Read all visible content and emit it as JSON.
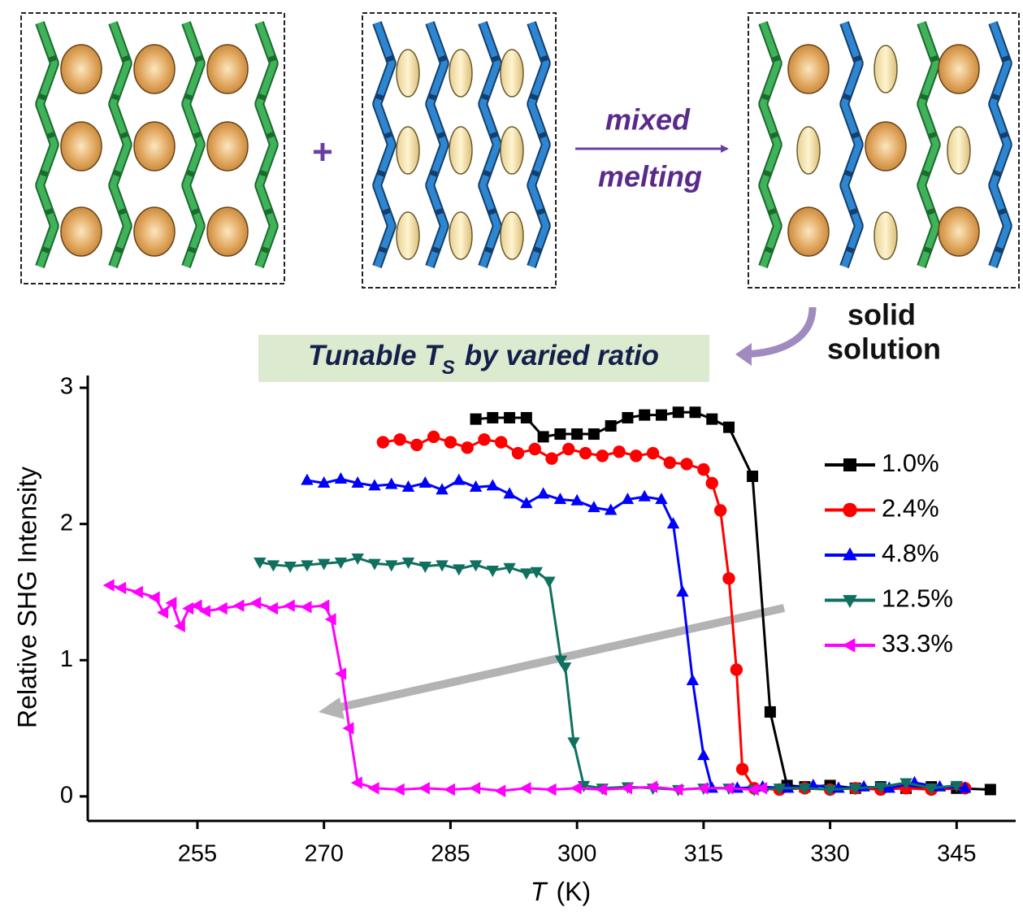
{
  "diagram": {
    "plus": "+",
    "arrow_label_top": "mixed",
    "arrow_label_bottom": "melting",
    "product_label_top": "solid",
    "product_label_bottom": "solution",
    "banner": {
      "before": "Tunable T",
      "subscript": "S",
      "after": "by varied ratio"
    }
  },
  "chart_data": {
    "type": "line",
    "ylabel": "Relative SHG Intensity",
    "xlabel": "T",
    "xlabel_unit": "(K)",
    "xlim": [
      242,
      352
    ],
    "ylim": [
      -0.18,
      3.09
    ],
    "xticks": [
      255,
      270,
      285,
      300,
      315,
      330,
      345
    ],
    "yticks": [
      0,
      1,
      2,
      3
    ],
    "legend": "upper right",
    "series": [
      {
        "name": "1.0%",
        "color": "#000000",
        "marker": "square",
        "x": [
          288,
          290,
          292,
          294,
          296,
          298,
          300,
          302,
          304,
          306,
          308,
          310,
          312,
          314,
          316,
          318,
          320.8,
          322.9,
          324.9,
          327,
          330,
          333,
          336,
          339,
          342,
          345,
          349
        ],
        "values": [
          2.77,
          2.78,
          2.78,
          2.78,
          2.64,
          2.66,
          2.66,
          2.66,
          2.72,
          2.78,
          2.8,
          2.8,
          2.82,
          2.82,
          2.77,
          2.71,
          2.35,
          0.62,
          0.08,
          0.07,
          0.08,
          0.06,
          0.07,
          0.06,
          0.07,
          0.06,
          0.05
        ]
      },
      {
        "name": "2.4%",
        "color": "#ff0000",
        "marker": "circle",
        "x": [
          277,
          279,
          281,
          283,
          285,
          287,
          289,
          291,
          293,
          295,
          297,
          299,
          301,
          303,
          305,
          307,
          309,
          311,
          313,
          315,
          316,
          317,
          318,
          318.9,
          319.6,
          321,
          324,
          327,
          330,
          333,
          336,
          339,
          342,
          346
        ],
        "values": [
          2.6,
          2.62,
          2.58,
          2.64,
          2.6,
          2.56,
          2.62,
          2.6,
          2.52,
          2.55,
          2.48,
          2.55,
          2.52,
          2.5,
          2.53,
          2.5,
          2.52,
          2.45,
          2.44,
          2.4,
          2.3,
          2.1,
          1.6,
          0.93,
          0.2,
          0.06,
          0.05,
          0.06,
          0.05,
          0.06,
          0.05,
          0.06,
          0.05,
          0.06
        ]
      },
      {
        "name": "4.8%",
        "color": "#0000ff",
        "marker": "triangle-up",
        "x": [
          268,
          270,
          272,
          274,
          276,
          278,
          280,
          282,
          284,
          286,
          288,
          290,
          292,
          294,
          296,
          298,
          300,
          302,
          304,
          306,
          308,
          310,
          311.4,
          312.5,
          313.7,
          315,
          316,
          319,
          322,
          325,
          328,
          331,
          334,
          337,
          340,
          343,
          346
        ],
        "values": [
          2.32,
          2.3,
          2.33,
          2.3,
          2.28,
          2.29,
          2.27,
          2.3,
          2.25,
          2.32,
          2.27,
          2.28,
          2.22,
          2.15,
          2.22,
          2.18,
          2.17,
          2.12,
          2.1,
          2.18,
          2.2,
          2.18,
          2.0,
          1.5,
          0.85,
          0.3,
          0.06,
          0.06,
          0.07,
          0.06,
          0.08,
          0.06,
          0.07,
          0.06,
          0.1,
          0.07,
          0.06
        ]
      },
      {
        "name": "12.5%",
        "color": "#0f7060",
        "marker": "triangle-down",
        "x": [
          262.4,
          264,
          266,
          268,
          270,
          272,
          274,
          276,
          278,
          280,
          282,
          284,
          286,
          288,
          290,
          292,
          294,
          295.2,
          296.7,
          298.1,
          298.6,
          299.6,
          300.8,
          303,
          306,
          309,
          312,
          315,
          318,
          321,
          324,
          327,
          330,
          333,
          336,
          339,
          342,
          345
        ],
        "values": [
          1.72,
          1.7,
          1.69,
          1.7,
          1.71,
          1.72,
          1.75,
          1.71,
          1.7,
          1.72,
          1.69,
          1.7,
          1.67,
          1.7,
          1.66,
          1.68,
          1.64,
          1.65,
          1.58,
          1.0,
          0.95,
          0.4,
          0.08,
          0.06,
          0.07,
          0.06,
          0.05,
          0.06,
          0.06,
          0.05,
          0.06,
          0.06,
          0.05,
          0.06,
          0.07,
          0.1,
          0.06,
          0.08
        ]
      },
      {
        "name": "33.3%",
        "color": "#ff00ff",
        "marker": "triangle-left",
        "x": [
          244.6,
          246,
          248,
          250,
          251,
          252,
          253,
          254,
          255,
          256,
          258,
          260,
          262,
          264,
          266,
          268,
          270.1,
          270.9,
          272.1,
          273,
          274,
          276,
          279,
          282,
          285,
          288,
          291,
          294,
          297,
          300,
          303,
          306,
          309,
          312,
          315,
          318,
          321,
          322
        ],
        "values": [
          1.55,
          1.53,
          1.5,
          1.46,
          1.35,
          1.42,
          1.25,
          1.38,
          1.4,
          1.36,
          1.38,
          1.4,
          1.42,
          1.38,
          1.4,
          1.39,
          1.4,
          1.3,
          0.9,
          0.5,
          0.1,
          0.06,
          0.05,
          0.06,
          0.05,
          0.06,
          0.04,
          0.06,
          0.05,
          0.06,
          0.05,
          0.06,
          0.07,
          0.05,
          0.06,
          0.06,
          0.05,
          0.06
        ]
      }
    ]
  }
}
